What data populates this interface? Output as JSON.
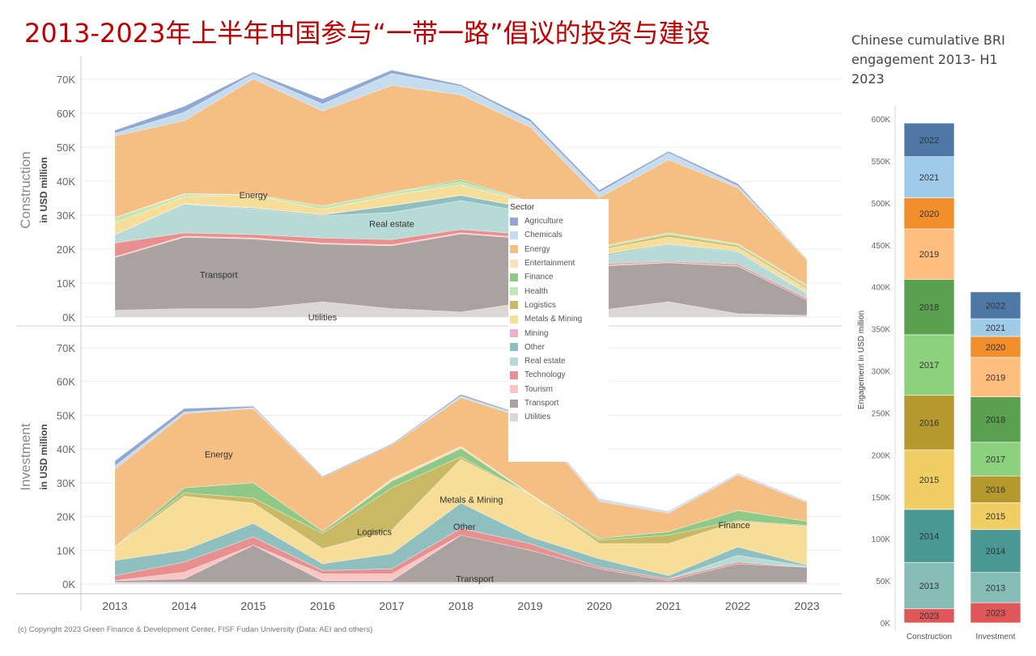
{
  "slide_title": "2013-2023年上半年中国参与“一带一路”倡议的投资与建设",
  "copyright": "(c) Copyright 2023 Green Finance & Development Center, FISF Fudan University (Data: AEI and others)",
  "colors": {
    "Agriculture": "#8fa9d2",
    "Chemicals": "#c5dcef",
    "Energy": "#f5bf84",
    "Entertainment": "#fbe0bb",
    "Finance": "#90c987",
    "Health": "#c3e6b2",
    "Logistics": "#c9b964",
    "Metals & Mining": "#f6de98",
    "Mining": "#eeb2c8",
    "Other": "#8fbfbf",
    "Real estate": "#b8dad6",
    "Technology": "#e8908f",
    "Tourism": "#fac6c3",
    "Transport": "#a9a2a1",
    "Utilities": "#dcd6d5",
    "2013": "#86bcb6",
    "2014": "#499894",
    "2015": "#f1ce63",
    "2016": "#b6992d",
    "2017": "#8cd17d",
    "2018": "#59a14f",
    "2019": "#ffbe7d",
    "2020": "#f28e2b",
    "2021": "#a0cbe8",
    "2022": "#4e79a7",
    "2023": "#e15759"
  },
  "chart_data": [
    {
      "type": "area",
      "panel": "Construction",
      "title": "",
      "ylabel": "Construction",
      "ylabel_sub": "in USD million",
      "x": [
        "2013",
        "2014",
        "2015",
        "2016",
        "2017",
        "2018",
        "2019",
        "2020",
        "2021",
        "2022",
        "2023"
      ],
      "ylim": [
        0,
        70000
      ],
      "yticks": [
        "0K",
        "10K",
        "20K",
        "30K",
        "40K",
        "50K",
        "60K",
        "70K"
      ],
      "series": [
        {
          "name": "Utilities",
          "values": [
            2000,
            2500,
            2500,
            4500,
            2500,
            1500,
            4500,
            2000,
            4500,
            1000,
            500
          ]
        },
        {
          "name": "Transport",
          "values": [
            15500,
            21000,
            20500,
            17000,
            18500,
            23000,
            18500,
            13000,
            11500,
            14000,
            4500
          ]
        },
        {
          "name": "Tourism",
          "values": [
            300,
            300,
            300,
            300,
            300,
            300,
            300,
            200,
            100,
            100,
            0
          ]
        },
        {
          "name": "Technology",
          "values": [
            4000,
            1000,
            1000,
            1500,
            1500,
            1000,
            1000,
            500,
            300,
            500,
            500
          ]
        },
        {
          "name": "Real estate",
          "values": [
            2500,
            8500,
            7500,
            6500,
            8000,
            8500,
            6500,
            2000,
            5000,
            3500,
            1500
          ]
        },
        {
          "name": "Other",
          "values": [
            0,
            0,
            300,
            300,
            2000,
            1500,
            1200,
            500,
            200,
            300,
            100
          ]
        },
        {
          "name": "Mining",
          "values": [
            0,
            100,
            100,
            100,
            100,
            100,
            100,
            0,
            0,
            0,
            0
          ]
        },
        {
          "name": "Metals & Mining",
          "values": [
            3500,
            2000,
            3700,
            1500,
            3000,
            3000,
            1500,
            1600,
            2000,
            1200,
            1300
          ]
        },
        {
          "name": "Logistics",
          "values": [
            0,
            0,
            0,
            0,
            0,
            0,
            0,
            400,
            700,
            500,
            500
          ]
        },
        {
          "name": "Health",
          "values": [
            1500,
            500,
            200,
            1000,
            800,
            1000,
            400,
            500,
            500,
            500,
            400
          ]
        },
        {
          "name": "Finance",
          "values": [
            0,
            200,
            0,
            0,
            0,
            500,
            0,
            0,
            0,
            0,
            0
          ]
        },
        {
          "name": "Entertainment",
          "values": [
            0,
            200,
            0,
            0,
            0,
            0,
            0,
            0,
            0,
            0,
            0
          ]
        },
        {
          "name": "Energy",
          "values": [
            24000,
            21500,
            34000,
            28000,
            31500,
            25000,
            22000,
            14500,
            21500,
            16500,
            7500
          ]
        },
        {
          "name": "Chemicals",
          "values": [
            800,
            2500,
            1500,
            2000,
            3500,
            2500,
            1500,
            1500,
            2000,
            500,
            400
          ]
        },
        {
          "name": "Agriculture",
          "values": [
            900,
            1700,
            500,
            1500,
            1000,
            500,
            800,
            700,
            500,
            700,
            0
          ]
        }
      ],
      "annotations": [
        "Energy",
        "Real estate",
        "Transport",
        "Utilities"
      ]
    },
    {
      "type": "area",
      "panel": "Investment",
      "title": "",
      "ylabel": "Investment",
      "ylabel_sub": "in USD million",
      "x": [
        "2013",
        "2014",
        "2015",
        "2016",
        "2017",
        "2018",
        "2019",
        "2020",
        "2021",
        "2022",
        "2023"
      ],
      "ylim": [
        0,
        70000
      ],
      "yticks": [
        "0K",
        "10K",
        "20K",
        "30K",
        "40K",
        "50K",
        "60K",
        "70K"
      ],
      "series": [
        {
          "name": "Utilities",
          "values": [
            500,
            500,
            500,
            500,
            500,
            500,
            500,
            500,
            500,
            500,
            500
          ]
        },
        {
          "name": "Transport",
          "values": [
            500,
            1000,
            11000,
            500,
            500,
            14000,
            9500,
            4000,
            500,
            5500,
            4500
          ]
        },
        {
          "name": "Tourism",
          "values": [
            0,
            2000,
            0,
            2000,
            2000,
            0,
            0,
            0,
            0,
            0,
            0
          ]
        },
        {
          "name": "Technology",
          "values": [
            1500,
            3000,
            2500,
            1000,
            1500,
            2000,
            2000,
            500,
            500,
            500,
            0
          ]
        },
        {
          "name": "Real estate",
          "values": [
            0,
            0,
            0,
            0,
            0,
            0,
            0,
            0,
            0,
            2000,
            300
          ]
        },
        {
          "name": "Other",
          "values": [
            4500,
            3500,
            4000,
            2000,
            4500,
            7500,
            2000,
            2500,
            1000,
            2500,
            300
          ]
        },
        {
          "name": "Metals & Mining",
          "values": [
            4000,
            16000,
            6000,
            4500,
            7000,
            13000,
            12500,
            4500,
            9500,
            7500,
            11500
          ]
        },
        {
          "name": "Logistics",
          "values": [
            0,
            1000,
            1500,
            4500,
            12500,
            700,
            0,
            1000,
            2500,
            300,
            300
          ]
        },
        {
          "name": "Health",
          "values": [
            0,
            0,
            0,
            0,
            0,
            0,
            0,
            0,
            0,
            0,
            0
          ]
        },
        {
          "name": "Finance",
          "values": [
            0,
            1500,
            4500,
            600,
            2000,
            2500,
            0,
            500,
            1000,
            3000,
            1200
          ]
        },
        {
          "name": "Entertainment",
          "values": [
            0,
            0,
            0,
            0,
            700,
            600,
            200,
            0,
            0,
            0,
            0
          ]
        },
        {
          "name": "Energy",
          "values": [
            23000,
            22000,
            22000,
            16000,
            10000,
            14500,
            22000,
            11000,
            5500,
            10500,
            5500
          ]
        },
        {
          "name": "Chemicals",
          "values": [
            1000,
            500,
            300,
            0,
            0,
            400,
            500,
            500,
            500,
            300,
            200
          ]
        },
        {
          "name": "Agriculture",
          "values": [
            1500,
            1000,
            400,
            300,
            300,
            500,
            300,
            200,
            100,
            200,
            200
          ]
        }
      ],
      "annotations": [
        "Energy",
        "Logistics",
        "Metals & Mining",
        "Other",
        "Transport",
        "Finance"
      ]
    },
    {
      "type": "bar",
      "stacked": true,
      "title": "Chinese cumulative BRI engagement 2013- H1 2023",
      "ylabel": "Engagement in USD million",
      "categories": [
        "Construction",
        "Investment"
      ],
      "ylim": [
        0,
        600000
      ],
      "yticks": [
        "0K",
        "50K",
        "100K",
        "150K",
        "200K",
        "250K",
        "300K",
        "350K",
        "400K",
        "450K",
        "500K",
        "550K",
        "600K"
      ],
      "series": [
        {
          "name": "2023",
          "values": [
            17000,
            24000
          ]
        },
        {
          "name": "2013",
          "values": [
            55000,
            36000
          ]
        },
        {
          "name": "2014",
          "values": [
            63000,
            51000
          ]
        },
        {
          "name": "2015",
          "values": [
            71000,
            32000
          ]
        },
        {
          "name": "2016",
          "values": [
            65000,
            32000
          ]
        },
        {
          "name": "2017",
          "values": [
            72000,
            40000
          ]
        },
        {
          "name": "2018",
          "values": [
            66000,
            54000
          ]
        },
        {
          "name": "2019",
          "values": [
            60000,
            47000
          ]
        },
        {
          "name": "2020",
          "values": [
            37000,
            25000
          ]
        },
        {
          "name": "2021",
          "values": [
            49000,
            21000
          ]
        },
        {
          "name": "2022",
          "values": [
            40000,
            32000
          ]
        }
      ]
    }
  ],
  "legend": {
    "title": "Sector",
    "items": [
      "Agriculture",
      "Chemicals",
      "Energy",
      "Entertainment",
      "Finance",
      "Health",
      "Logistics",
      "Metals & Mining",
      "Mining",
      "Other",
      "Real estate",
      "Technology",
      "Tourism",
      "Transport",
      "Utilities"
    ]
  }
}
